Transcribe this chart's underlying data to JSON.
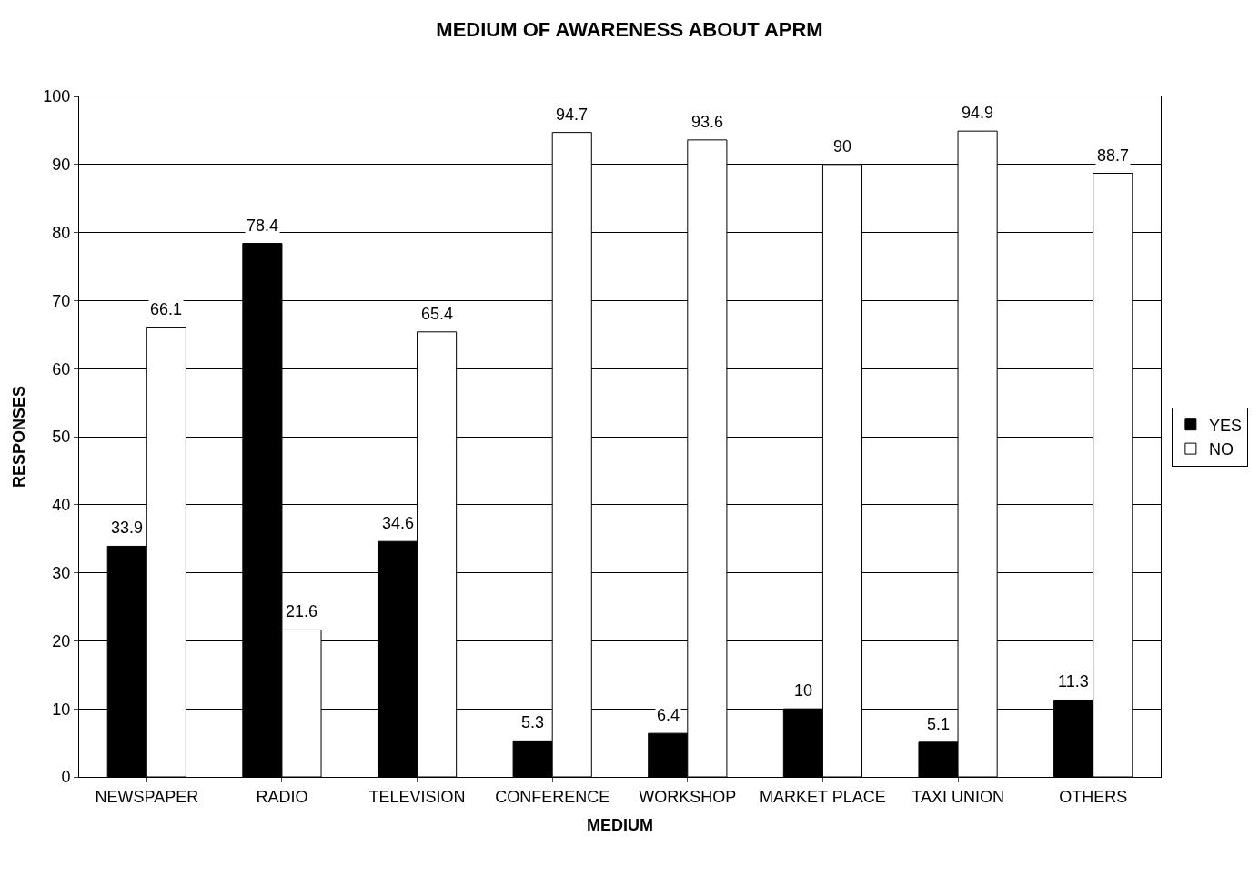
{
  "chart_data": {
    "type": "bar",
    "title": "MEDIUM OF AWARENESS ABOUT APRM",
    "xlabel": "MEDIUM",
    "ylabel": "RESPONSES",
    "categories": [
      "NEWSPAPER",
      "RADIO",
      "TELEVISION",
      "CONFERENCE",
      "WORKSHOP",
      "MARKET PLACE",
      "TAXI UNION",
      "OTHERS"
    ],
    "series": [
      {
        "name": "YES",
        "color": "#000000",
        "values": [
          33.9,
          78.4,
          34.6,
          5.3,
          6.4,
          10,
          5.1,
          11.3
        ]
      },
      {
        "name": "NO",
        "color": "#ffffff",
        "values": [
          66.1,
          21.6,
          65.4,
          94.7,
          93.6,
          90,
          94.9,
          88.7
        ]
      }
    ],
    "ylim": [
      0,
      100
    ],
    "yticks": [
      0,
      10,
      20,
      30,
      40,
      50,
      60,
      70,
      80,
      90,
      100
    ],
    "grid": "y",
    "legend": "right",
    "data_labels": true
  }
}
